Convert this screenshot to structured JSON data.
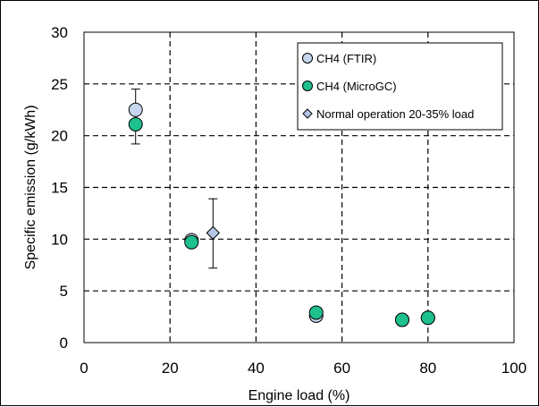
{
  "chart_data": {
    "type": "scatter",
    "title": "",
    "xlabel": "Engine load (%)",
    "ylabel": "Specific emission (g/kWh)",
    "xlim": [
      0,
      100
    ],
    "ylim": [
      0,
      30
    ],
    "x_ticks": [
      0,
      20,
      40,
      60,
      80,
      100
    ],
    "y_ticks": [
      0,
      5,
      10,
      15,
      20,
      25,
      30
    ],
    "grid": "dashed",
    "legend_position": "top-right",
    "series": [
      {
        "name": "CH4 (FTIR)",
        "marker": "circle",
        "color": "#c5d6ee",
        "points": [
          {
            "x": 12,
            "y": 22.5
          },
          {
            "x": 25,
            "y": 9.9
          },
          {
            "x": 54,
            "y": 2.6
          },
          {
            "x": 74,
            "y": 2.2
          },
          {
            "x": 80,
            "y": 2.4
          }
        ]
      },
      {
        "name": "CH4 (MicroGC)",
        "marker": "circle",
        "color": "#1ec08e",
        "points": [
          {
            "x": 12,
            "y": 21.1
          },
          {
            "x": 25,
            "y": 9.7
          },
          {
            "x": 54,
            "y": 2.9
          },
          {
            "x": 74,
            "y": 2.2
          },
          {
            "x": 80,
            "y": 2.4
          }
        ]
      },
      {
        "name": "Normal operation 20-35% load",
        "marker": "diamond",
        "color": "#b4c7e7",
        "points": [
          {
            "x": 30,
            "y": 10.6
          }
        ]
      }
    ],
    "error_bars": [
      {
        "x": 12,
        "low": 19.2,
        "high": 24.5
      },
      {
        "x": 30,
        "low": 7.2,
        "high": 13.9
      }
    ]
  }
}
